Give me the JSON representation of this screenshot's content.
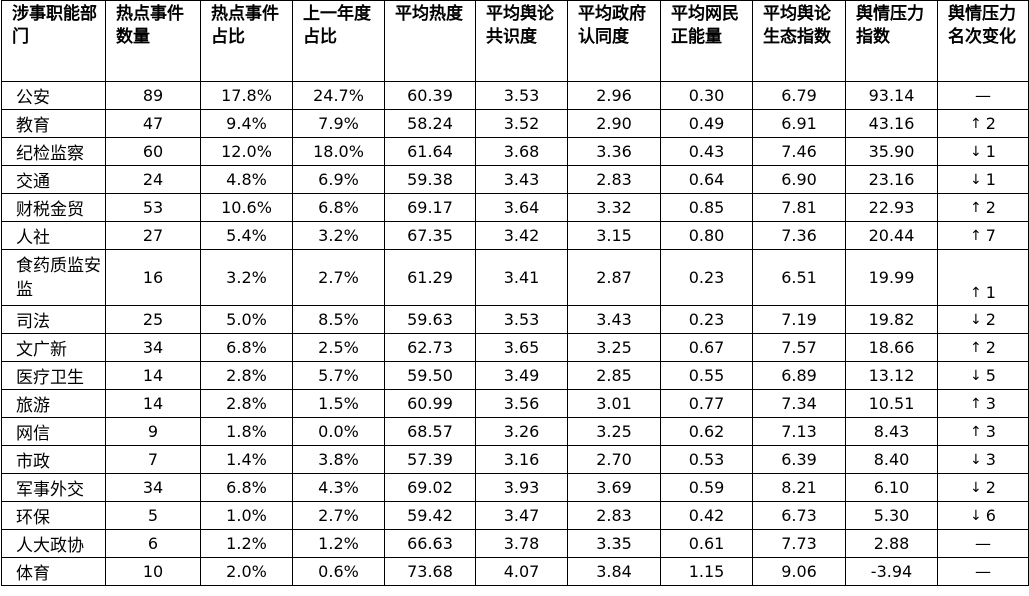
{
  "table": {
    "headers": [
      "涉事职能部门",
      "热点事件数量",
      "热点事件占比",
      "上一年度占比",
      "平均热度",
      "平均舆论共识度",
      "平均政府认同度",
      "平均网民正能量",
      "平均舆论生态指数",
      "舆情压力指数",
      "舆情压力名次变化"
    ],
    "rows": [
      {
        "dept": "公安",
        "count": "89",
        "share": "17.8%",
        "prev_share": "24.7%",
        "heat": "60.39",
        "consensus": "3.53",
        "gov_approval": "2.96",
        "positive": "0.30",
        "eco_index": "6.79",
        "pressure": "93.14",
        "change_arrow": "",
        "change_value": "—"
      },
      {
        "dept": "教育",
        "count": "47",
        "share": "9.4%",
        "prev_share": "7.9%",
        "heat": "58.24",
        "consensus": "3.52",
        "gov_approval": "2.90",
        "positive": "0.49",
        "eco_index": "6.91",
        "pressure": "43.16",
        "change_arrow": "↑",
        "change_value": "2"
      },
      {
        "dept": "纪检监察",
        "count": "60",
        "share": "12.0%",
        "prev_share": "18.0%",
        "heat": "61.64",
        "consensus": "3.68",
        "gov_approval": "3.36",
        "positive": "0.43",
        "eco_index": "7.46",
        "pressure": "35.90",
        "change_arrow": "↓",
        "change_value": "1"
      },
      {
        "dept": "交通",
        "count": "24",
        "share": "4.8%",
        "prev_share": "6.9%",
        "heat": "59.38",
        "consensus": "3.43",
        "gov_approval": "2.83",
        "positive": "0.64",
        "eco_index": "6.90",
        "pressure": "23.16",
        "change_arrow": "↓",
        "change_value": "1"
      },
      {
        "dept": "财税金贸",
        "count": "53",
        "share": "10.6%",
        "prev_share": "6.8%",
        "heat": "69.17",
        "consensus": "3.64",
        "gov_approval": "3.32",
        "positive": "0.85",
        "eco_index": "7.81",
        "pressure": "22.93",
        "change_arrow": "↑",
        "change_value": "2"
      },
      {
        "dept": "人社",
        "count": "27",
        "share": "5.4%",
        "prev_share": "3.2%",
        "heat": "67.35",
        "consensus": "3.42",
        "gov_approval": "3.15",
        "positive": "0.80",
        "eco_index": "7.36",
        "pressure": "20.44",
        "change_arrow": "↑",
        "change_value": "7"
      },
      {
        "dept": "食药质监安监",
        "count": "16",
        "share": "3.2%",
        "prev_share": "2.7%",
        "heat": "61.29",
        "consensus": "3.41",
        "gov_approval": "2.87",
        "positive": "0.23",
        "eco_index": "6.51",
        "pressure": "19.99",
        "change_arrow": "↑",
        "change_value": "1"
      },
      {
        "dept": "司法",
        "count": "25",
        "share": "5.0%",
        "prev_share": "8.5%",
        "heat": "59.63",
        "consensus": "3.53",
        "gov_approval": "3.43",
        "positive": "0.23",
        "eco_index": "7.19",
        "pressure": "19.82",
        "change_arrow": "↓",
        "change_value": "2"
      },
      {
        "dept": "文广新",
        "count": "34",
        "share": "6.8%",
        "prev_share": "2.5%",
        "heat": "62.73",
        "consensus": "3.65",
        "gov_approval": "3.25",
        "positive": "0.67",
        "eco_index": "7.57",
        "pressure": "18.66",
        "change_arrow": "↑",
        "change_value": "2"
      },
      {
        "dept": "医疗卫生",
        "count": "14",
        "share": "2.8%",
        "prev_share": "5.7%",
        "heat": "59.50",
        "consensus": "3.49",
        "gov_approval": "2.85",
        "positive": "0.55",
        "eco_index": "6.89",
        "pressure": "13.12",
        "change_arrow": "↓",
        "change_value": "5"
      },
      {
        "dept": "旅游",
        "count": "14",
        "share": "2.8%",
        "prev_share": "1.5%",
        "heat": "60.99",
        "consensus": "3.56",
        "gov_approval": "3.01",
        "positive": "0.77",
        "eco_index": "7.34",
        "pressure": "10.51",
        "change_arrow": "↑",
        "change_value": "3"
      },
      {
        "dept": "网信",
        "count": "9",
        "share": "1.8%",
        "prev_share": "0.0%",
        "heat": "68.57",
        "consensus": "3.26",
        "gov_approval": "3.25",
        "positive": "0.62",
        "eco_index": "7.13",
        "pressure": "8.43",
        "change_arrow": "↑",
        "change_value": "3"
      },
      {
        "dept": "市政",
        "count": "7",
        "share": "1.4%",
        "prev_share": "3.8%",
        "heat": "57.39",
        "consensus": "3.16",
        "gov_approval": "2.70",
        "positive": "0.53",
        "eco_index": "6.39",
        "pressure": "8.40",
        "change_arrow": "↓",
        "change_value": "3"
      },
      {
        "dept": "军事外交",
        "count": "34",
        "share": "6.8%",
        "prev_share": "4.3%",
        "heat": "69.02",
        "consensus": "3.93",
        "gov_approval": "3.69",
        "positive": "0.59",
        "eco_index": "8.21",
        "pressure": "6.10",
        "change_arrow": "↓",
        "change_value": "2"
      },
      {
        "dept": "环保",
        "count": "5",
        "share": "1.0%",
        "prev_share": "2.7%",
        "heat": "59.42",
        "consensus": "3.47",
        "gov_approval": "2.83",
        "positive": "0.42",
        "eco_index": "6.73",
        "pressure": "5.30",
        "change_arrow": "↓",
        "change_value": "6"
      },
      {
        "dept": "人大政协",
        "count": "6",
        "share": "1.2%",
        "prev_share": "1.2%",
        "heat": "66.63",
        "consensus": "3.78",
        "gov_approval": "3.35",
        "positive": "0.61",
        "eco_index": "7.73",
        "pressure": "2.88",
        "change_arrow": "",
        "change_value": "—"
      },
      {
        "dept": "体育",
        "count": "10",
        "share": "2.0%",
        "prev_share": "0.6%",
        "heat": "73.68",
        "consensus": "4.07",
        "gov_approval": "3.84",
        "positive": "1.15",
        "eco_index": "9.06",
        "pressure": "-3.94",
        "change_arrow": "",
        "change_value": "—"
      }
    ]
  }
}
